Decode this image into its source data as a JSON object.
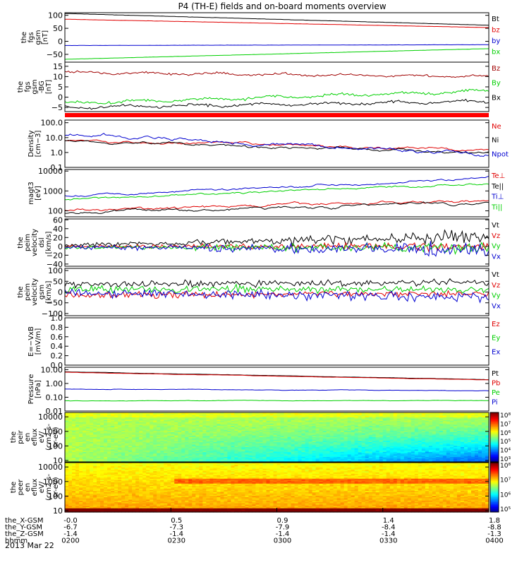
{
  "title": "P4 (TH-E) fields and on-board moments overview",
  "colors": {
    "black": "#000000",
    "red": "#e00000",
    "green": "#00d000",
    "blue": "#0000d0",
    "darkred": "#a00000",
    "bar": "#ff0000"
  },
  "xticks": [
    "0200",
    "0230",
    "0300",
    "0330",
    "0400"
  ],
  "ephemeris": [
    {
      "label": "the_X-GSM",
      "values": [
        "-0.0",
        "0.5",
        "0.9",
        "1.4",
        "1.8"
      ]
    },
    {
      "label": "the_Y-GSM",
      "values": [
        "-6.7",
        "-7.3",
        "-7.9",
        "-8.4",
        "-8.8"
      ]
    },
    {
      "label": "the_Z-GSM",
      "values": [
        "-1.4",
        "-1.4",
        "-1.4",
        "-1.4",
        "-1.3"
      ]
    },
    {
      "label": "hhmm",
      "values": [
        "0200",
        "0230",
        "0300",
        "0330",
        "0400"
      ]
    }
  ],
  "date": "2013 Mar 22",
  "chart_data": [
    {
      "type": "line",
      "ylabel": [
        "the",
        "fgs",
        "gsm",
        "[nT]"
      ],
      "scale": "linear",
      "ylim": [
        -80,
        110
      ],
      "ticks": [
        {
          "v": 100,
          "t": "100"
        },
        {
          "v": 50,
          "t": "50"
        },
        {
          "v": 0,
          "t": "0"
        },
        {
          "v": -50,
          "t": "−50"
        }
      ],
      "series": [
        {
          "name": "Bt",
          "color": "black",
          "start": 107,
          "end": 62,
          "noise": 0.3
        },
        {
          "name": "bz",
          "color": "red",
          "start": 85,
          "end": 53,
          "noise": 0.3
        },
        {
          "name": "by",
          "color": "blue",
          "start": -16,
          "end": -13,
          "noise": 0.3
        },
        {
          "name": "bx",
          "color": "green",
          "start": -69,
          "end": -28,
          "noise": 0.3
        }
      ]
    },
    {
      "type": "line",
      "ylabel": [
        "the",
        "fgs",
        "gsm",
        "-BG",
        "[nT]"
      ],
      "scale": "linear",
      "ylim": [
        -7,
        17
      ],
      "ticks": [
        {
          "v": 15,
          "t": "15"
        },
        {
          "v": 10,
          "t": "10"
        },
        {
          "v": 5,
          "t": "5"
        },
        {
          "v": 0,
          "t": "0"
        },
        {
          "v": -5,
          "t": "−5"
        }
      ],
      "series": [
        {
          "name": "Bz",
          "color": "darkred",
          "start": 12,
          "end": 10,
          "noise": 0.8
        },
        {
          "name": "By",
          "color": "green",
          "start": -3,
          "end": 3,
          "noise": 1.0
        },
        {
          "name": "Bx",
          "color": "black",
          "start": -5,
          "end": -2,
          "noise": 1.0
        }
      ]
    },
    {
      "type": "line",
      "ylabel": [
        "Density",
        "[cm−3]"
      ],
      "scale": "log",
      "ylim": [
        0.1,
        150
      ],
      "ticks": [
        {
          "v": 100,
          "t": "100.0"
        },
        {
          "v": 10,
          "t": "10.0"
        },
        {
          "v": 1,
          "t": "1.0"
        },
        {
          "v": 0.1,
          "t": "0.1"
        }
      ],
      "series": [
        {
          "name": "Ne",
          "color": "red",
          "start": 6,
          "end": 1.5,
          "noise": 0.05
        },
        {
          "name": "Ni",
          "color": "black",
          "start": 7,
          "end": 0.9,
          "noise": 0.05
        },
        {
          "name": "Npot",
          "color": "blue",
          "start": 15,
          "end": 0.8,
          "noise": 0.07
        }
      ]
    },
    {
      "type": "line",
      "ylabel": [
        "magt3",
        "[eV]"
      ],
      "scale": "log",
      "ylim": [
        50,
        12000
      ],
      "ticks": [
        {
          "v": 10000,
          "t": "10000"
        },
        {
          "v": 1000,
          "t": "1000"
        },
        {
          "v": 100,
          "t": "100"
        }
      ],
      "series": [
        {
          "name": "Te⊥",
          "color": "red",
          "start": 100,
          "end": 350,
          "noise": 0.04
        },
        {
          "name": "Te||",
          "color": "black",
          "start": 80,
          "end": 270,
          "noise": 0.04
        },
        {
          "name": "Ti⊥",
          "color": "blue",
          "start": 600,
          "end": 4500,
          "noise": 0.03
        },
        {
          "name": "Ti||",
          "color": "green",
          "start": 350,
          "end": 2500,
          "noise": 0.03
        }
      ]
    },
    {
      "type": "line",
      "ylabel": [
        "the",
        "peim",
        "velocity",
        "dsl",
        "[km/s]"
      ],
      "scale": "linear",
      "ylim": [
        -45,
        62
      ],
      "ticks": [
        {
          "v": 60,
          "t": "60"
        },
        {
          "v": 40,
          "t": "40"
        },
        {
          "v": 20,
          "t": "20"
        },
        {
          "v": 0,
          "t": "0"
        },
        {
          "v": -20,
          "t": "−20"
        },
        {
          "v": -40,
          "t": "−40"
        }
      ],
      "series": [
        {
          "name": "Vt",
          "color": "black",
          "start": 3,
          "end": 22,
          "noise": 6
        },
        {
          "name": "Vz",
          "color": "red",
          "start": 0,
          "end": 0,
          "noise": 4
        },
        {
          "name": "Vy",
          "color": "green",
          "start": -2,
          "end": -4,
          "noise": 5
        },
        {
          "name": "Vx",
          "color": "blue",
          "start": -2,
          "end": -8,
          "noise": 6
        }
      ]
    },
    {
      "type": "line",
      "ylabel": [
        "the",
        "peim",
        "velocity",
        "gsm",
        "[km/s]"
      ],
      "scale": "linear",
      "ylim": [
        -110,
        110
      ],
      "ticks": [
        {
          "v": 100,
          "t": "100"
        },
        {
          "v": 50,
          "t": "50"
        },
        {
          "v": 0,
          "t": "0"
        },
        {
          "v": -50,
          "t": "−50"
        },
        {
          "v": -100,
          "t": "−100"
        }
      ],
      "series": [
        {
          "name": "Vt",
          "color": "black",
          "start": 35,
          "end": 45,
          "noise": 12
        },
        {
          "name": "Vz",
          "color": "red",
          "start": -15,
          "end": -5,
          "noise": 12
        },
        {
          "name": "Vy",
          "color": "green",
          "start": 15,
          "end": 10,
          "noise": 14
        },
        {
          "name": "Vx",
          "color": "blue",
          "start": 0,
          "end": -25,
          "noise": 18
        }
      ]
    },
    {
      "type": "line",
      "ylabel": [
        "E=−VxB",
        "[mV/m]"
      ],
      "scale": "linear",
      "ylim": [
        0,
        1
      ],
      "ticks": [
        {
          "v": 1,
          "t": "1.0"
        },
        {
          "v": 0.8,
          "t": "0.8"
        },
        {
          "v": 0.6,
          "t": "0.6"
        },
        {
          "v": 0.4,
          "t": "0.4"
        },
        {
          "v": 0.2,
          "t": "0.2"
        },
        {
          "v": 0,
          "t": "0.0"
        }
      ],
      "series": [
        {
          "name": "Ez",
          "color": "red",
          "start": null,
          "end": null,
          "noise": 0
        },
        {
          "name": "Ey",
          "color": "green",
          "start": null,
          "end": null,
          "noise": 0
        },
        {
          "name": "Ex",
          "color": "blue",
          "start": null,
          "end": null,
          "noise": 0
        }
      ]
    },
    {
      "type": "line",
      "ylabel": [
        "Pressure",
        "[nPa]"
      ],
      "scale": "log",
      "ylim": [
        0.01,
        15
      ],
      "ticks": [
        {
          "v": 10,
          "t": "10.00"
        },
        {
          "v": 1,
          "t": "1.00"
        },
        {
          "v": 0.1,
          "t": "0.10"
        },
        {
          "v": 0.01,
          "t": "0.01"
        }
      ],
      "series": [
        {
          "name": "Pt",
          "color": "black",
          "start": 7,
          "end": 1.9,
          "noise": 0.005
        },
        {
          "name": "Pb",
          "color": "red",
          "start": 6.5,
          "end": 1.8,
          "noise": 0.005
        },
        {
          "name": "Pe",
          "color": "green",
          "start": 0.055,
          "end": 0.06,
          "noise": 0.01
        },
        {
          "name": "Pi",
          "color": "blue",
          "start": 0.4,
          "end": 0.3,
          "noise": 0.01
        }
      ]
    },
    {
      "type": "heatmap",
      "ylabel": [
        "the",
        "peir",
        "en",
        "eflux",
        "eV/",
        "(cm2-s-",
        "sr-eV)"
      ],
      "scale": "log",
      "ylim": [
        8,
        20000
      ],
      "ticks": [
        {
          "v": 10000,
          "t": "10000"
        },
        {
          "v": 1000,
          "t": "1000"
        },
        {
          "v": 100,
          "t": "100"
        },
        {
          "v": 10,
          "t": "10"
        }
      ],
      "colorbar": {
        "min_exp": 3,
        "max_exp": 8,
        "labels": [
          "10⁸",
          "10⁷",
          "10⁶",
          "10⁵",
          "10⁴",
          "10³"
        ]
      }
    },
    {
      "type": "heatmap",
      "ylabel": [
        "the",
        "peer",
        "en",
        "eflux",
        "eV/",
        "(cm2-s-",
        "sr-eV)"
      ],
      "scale": "log",
      "ylim": [
        8,
        20000
      ],
      "ticks": [
        {
          "v": 10000,
          "t": "10000"
        },
        {
          "v": 1000,
          "t": "1000"
        },
        {
          "v": 100,
          "t": "100"
        },
        {
          "v": 10,
          "t": "10"
        }
      ],
      "colorbar": {
        "min_exp": 5,
        "max_exp": 8,
        "labels": [
          "10⁸",
          "10⁷",
          "10⁶",
          "10⁵"
        ]
      }
    }
  ]
}
